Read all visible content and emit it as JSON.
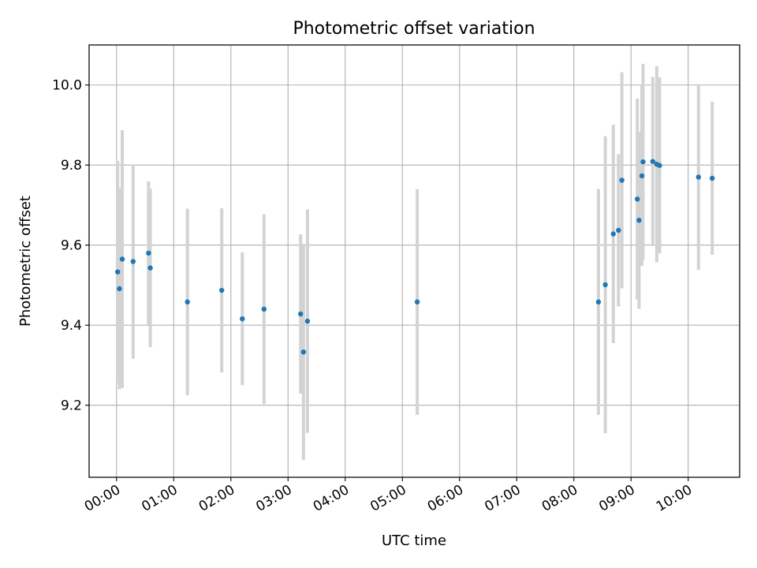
{
  "chart_data": {
    "type": "scatter",
    "title": "Photometric offset variation",
    "xlabel": "UTC time",
    "ylabel": "Photometric offset",
    "xlim_hours": [
      -0.48,
      10.9
    ],
    "ylim": [
      9.02,
      10.1
    ],
    "x_ticks": [
      {
        "hour": 0,
        "label": "00:00"
      },
      {
        "hour": 1,
        "label": "01:00"
      },
      {
        "hour": 2,
        "label": "02:00"
      },
      {
        "hour": 3,
        "label": "03:00"
      },
      {
        "hour": 4,
        "label": "04:00"
      },
      {
        "hour": 5,
        "label": "05:00"
      },
      {
        "hour": 6,
        "label": "06:00"
      },
      {
        "hour": 7,
        "label": "07:00"
      },
      {
        "hour": 8,
        "label": "08:00"
      },
      {
        "hour": 9,
        "label": "09:00"
      },
      {
        "hour": 10,
        "label": "10:00"
      }
    ],
    "y_ticks": [
      {
        "value": 9.2,
        "label": "9.2"
      },
      {
        "value": 9.4,
        "label": "9.4"
      },
      {
        "value": 9.6,
        "label": "9.6"
      },
      {
        "value": 9.8,
        "label": "9.8"
      },
      {
        "value": 10.0,
        "label": "10.0"
      }
    ],
    "grid": true,
    "colors": {
      "point": "#1f77b4",
      "errorbar": "#d3d3d3",
      "grid": "#b0b0b0",
      "axes": "#000000"
    },
    "series": [
      {
        "name": "offset",
        "points": [
          {
            "x": 0.02,
            "y": 9.533,
            "err": 0.277
          },
          {
            "x": 0.05,
            "y": 9.491,
            "err": 0.251
          },
          {
            "x": 0.1,
            "y": 9.565,
            "err": 0.322
          },
          {
            "x": 0.29,
            "y": 9.559,
            "err": 0.243
          },
          {
            "x": 0.56,
            "y": 9.58,
            "err": 0.179
          },
          {
            "x": 0.59,
            "y": 9.543,
            "err": 0.198
          },
          {
            "x": 1.24,
            "y": 9.458,
            "err": 0.233
          },
          {
            "x": 1.84,
            "y": 9.487,
            "err": 0.205
          },
          {
            "x": 2.2,
            "y": 9.416,
            "err": 0.166
          },
          {
            "x": 2.58,
            "y": 9.44,
            "err": 0.237
          },
          {
            "x": 3.22,
            "y": 9.428,
            "err": 0.199
          },
          {
            "x": 3.27,
            "y": 9.333,
            "err": 0.27
          },
          {
            "x": 3.34,
            "y": 9.41,
            "err": 0.279
          },
          {
            "x": 5.26,
            "y": 9.458,
            "err": 0.282
          },
          {
            "x": 8.43,
            "y": 9.458,
            "err": 0.282
          },
          {
            "x": 8.55,
            "y": 9.501,
            "err": 0.371
          },
          {
            "x": 8.69,
            "y": 9.628,
            "err": 0.273
          },
          {
            "x": 8.78,
            "y": 9.637,
            "err": 0.19
          },
          {
            "x": 8.84,
            "y": 9.762,
            "err": 0.27
          },
          {
            "x": 9.11,
            "y": 9.715,
            "err": 0.251
          },
          {
            "x": 9.14,
            "y": 9.662,
            "err": 0.221
          },
          {
            "x": 9.19,
            "y": 9.773,
            "err": 0.225
          },
          {
            "x": 9.21,
            "y": 9.808,
            "err": 0.245
          },
          {
            "x": 9.38,
            "y": 9.809,
            "err": 0.211
          },
          {
            "x": 9.45,
            "y": 9.802,
            "err": 0.245
          },
          {
            "x": 9.5,
            "y": 9.799,
            "err": 0.22
          },
          {
            "x": 10.18,
            "y": 9.77,
            "err": 0.232
          },
          {
            "x": 10.42,
            "y": 9.767,
            "err": 0.191
          }
        ]
      }
    ]
  }
}
